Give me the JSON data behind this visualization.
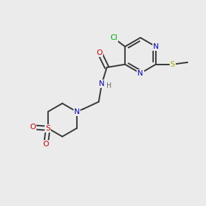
{
  "background_color": "#ebebeb",
  "bond_color": "#3a3a3a",
  "bond_width": 1.5,
  "atom_colors": {
    "N": "#0000cc",
    "O": "#cc0000",
    "S_yellow": "#aaaa00",
    "S_red": "#cc0000",
    "Cl": "#00aa00",
    "H": "#606060"
  },
  "figsize": [
    3.0,
    3.0
  ],
  "dpi": 100
}
